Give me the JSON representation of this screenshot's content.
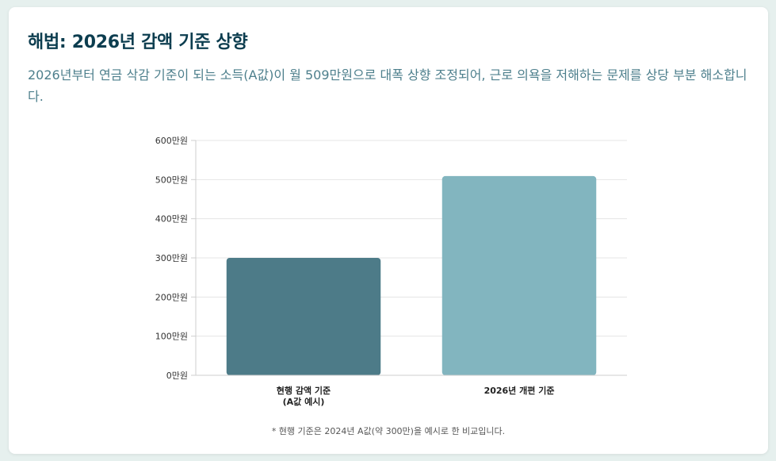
{
  "section": {
    "title": "해법: 2026년 감액 기준 상향",
    "description": "2026년부터 연금 삭감 기준이 되는 소득(A값)이 월 509만원으로 대폭 상향 조정되어, 근로 의욕을 저해하는 문제를 상당 부분 해소합니다."
  },
  "chart_data": {
    "type": "bar",
    "categories": [
      [
        "현행 감액 기준",
        "(A값 예시)"
      ],
      [
        "2026년 개편 기준"
      ]
    ],
    "values": [
      300,
      509
    ],
    "ylim": [
      0,
      600
    ],
    "yticks": [
      "0만원",
      "100만원",
      "200만원",
      "300만원",
      "400만원",
      "500만원",
      "600만원"
    ],
    "ytick_values": [
      0,
      100,
      200,
      300,
      400,
      500,
      600
    ],
    "colors": [
      "#4d7b88",
      "#82b5bf"
    ],
    "grid": true,
    "legend": "none"
  },
  "footnote": "* 현행 기준은 2024년 A값(약 300만)을 예시로 한 비교입니다."
}
